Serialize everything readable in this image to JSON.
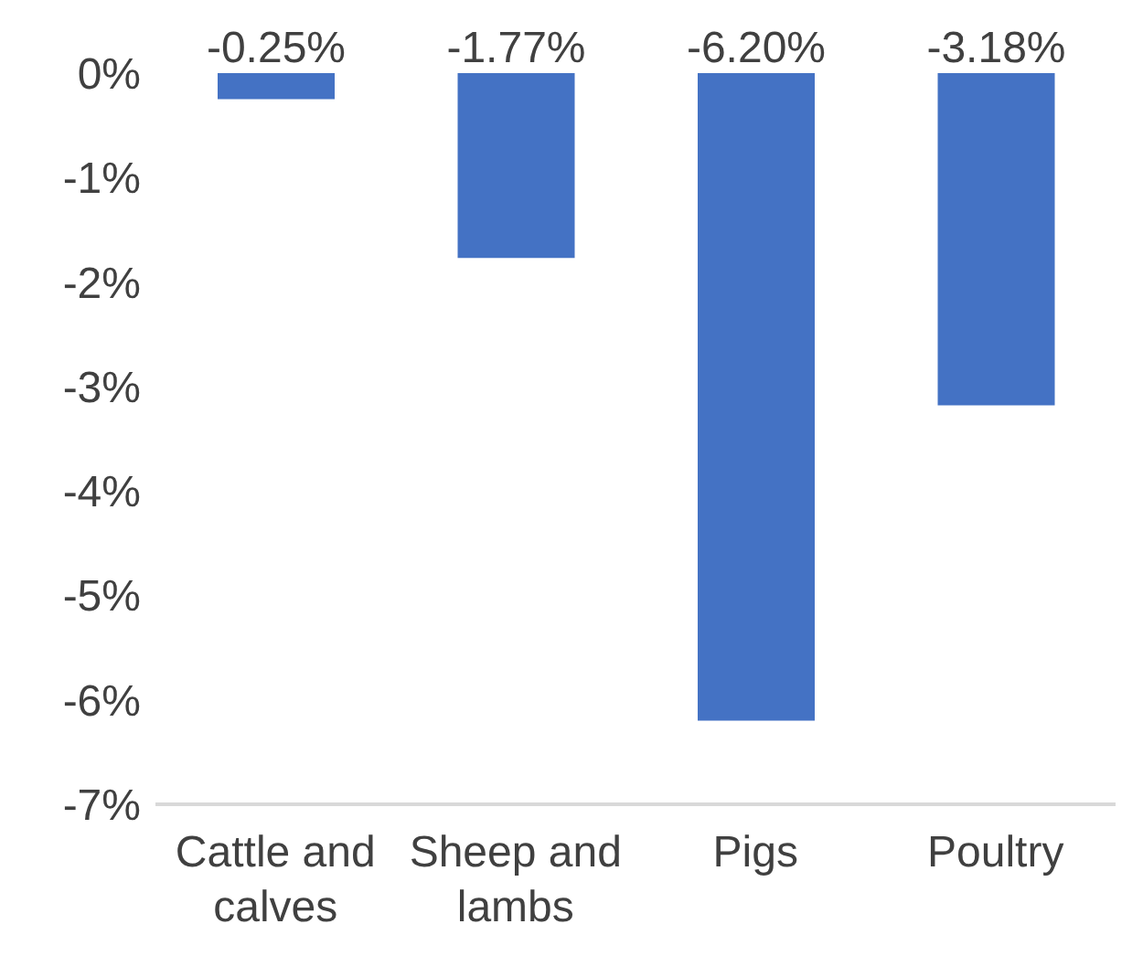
{
  "chart_data": {
    "type": "bar",
    "categories": [
      "Cattle and calves",
      "Sheep and lambs",
      "Pigs",
      "Poultry"
    ],
    "values": [
      -0.25,
      -1.77,
      -6.2,
      -3.18
    ],
    "color": "#4472c4",
    "value_labels": [
      "-0.25%",
      "-1.77%",
      "-6.20%",
      "-3.18%"
    ],
    "ylim": [
      -7,
      0
    ],
    "yticks": [
      {
        "value": 0,
        "label": "0%"
      },
      {
        "value": -1,
        "label": "-1%"
      },
      {
        "value": -2,
        "label": "-2%"
      },
      {
        "value": -3,
        "label": "-3%"
      },
      {
        "value": -4,
        "label": "-4%"
      },
      {
        "value": -5,
        "label": "-5%"
      },
      {
        "value": -6,
        "label": "-6%"
      },
      {
        "value": -7,
        "label": "-7%"
      }
    ],
    "grid": false,
    "legend": false
  }
}
